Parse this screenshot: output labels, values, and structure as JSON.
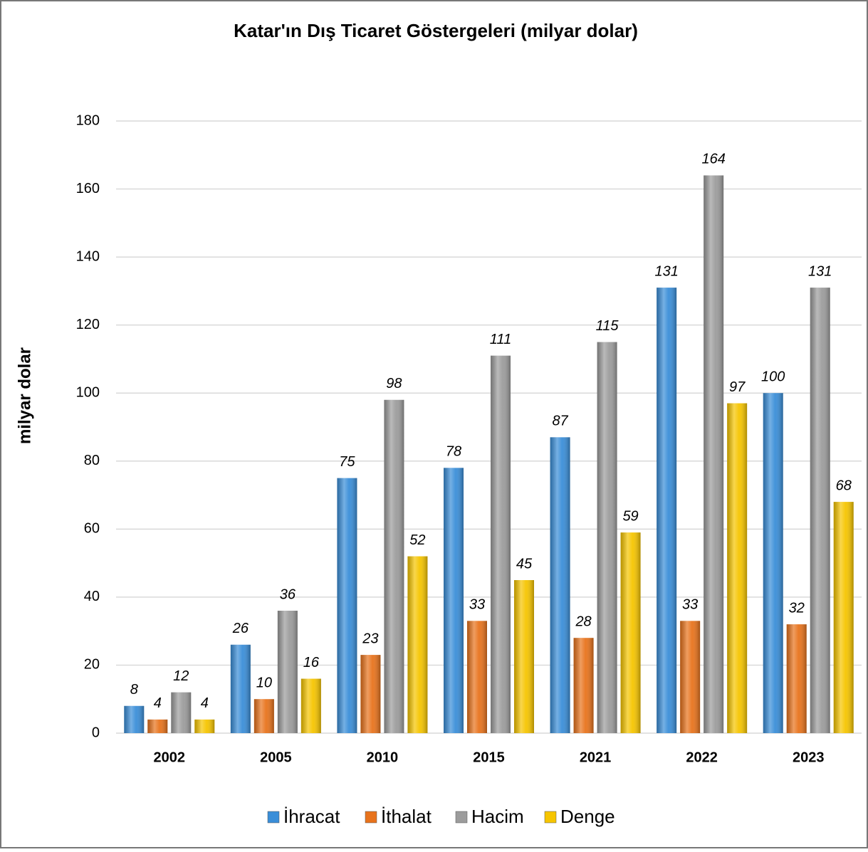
{
  "chart_data": {
    "type": "bar",
    "title": "Katar'ın Dış Ticaret Göstergeleri  (milyar dolar)",
    "y_label": "milyar dolar",
    "categories": [
      "2002",
      "2005",
      "2010",
      "2015",
      "2021",
      "2022",
      "2023"
    ],
    "series": [
      {
        "name": "İhracat",
        "color": "#3a8ed8",
        "values": [
          8,
          26,
          75,
          78,
          87,
          131,
          100
        ]
      },
      {
        "name": "İthalat",
        "color": "#e8731c",
        "values": [
          4,
          10,
          23,
          33,
          28,
          33,
          32
        ]
      },
      {
        "name": "Hacim",
        "color": "#9c9c9c",
        "values": [
          12,
          36,
          98,
          111,
          115,
          164,
          131
        ]
      },
      {
        "name": "Denge",
        "color": "#f6c500",
        "values": [
          4,
          16,
          52,
          45,
          59,
          97,
          68
        ]
      }
    ],
    "ylim": [
      0,
      180
    ],
    "yticks": [
      0,
      20,
      40,
      60,
      80,
      100,
      120,
      140,
      160,
      180
    ],
    "grid": true,
    "legend": "bottom"
  }
}
